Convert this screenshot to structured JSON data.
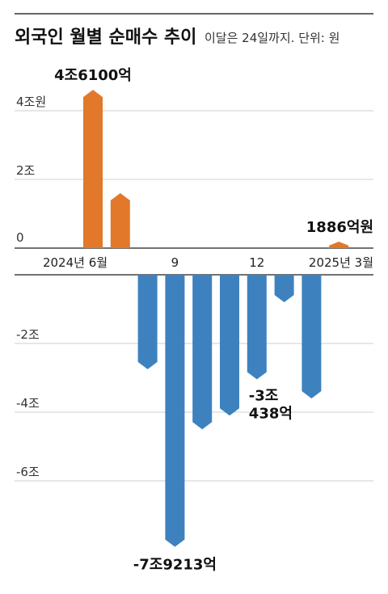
{
  "chart_data": {
    "type": "bar",
    "title": "외국인 월별 순매수 추이",
    "subtitle": "이달은 24일까지. 단위: 원",
    "categories": [
      "2024-06",
      "2024-07",
      "2024-08",
      "2024-09",
      "2024-10",
      "2024-11",
      "2024-12",
      "2025-01",
      "2025-02",
      "2025-03"
    ],
    "values_trillion": [
      4.61,
      1.6,
      -2.75,
      -7.9213,
      -4.5,
      -4.1,
      -3.0438,
      -0.8,
      -3.6,
      0.1886
    ],
    "ylim": [
      -8.2,
      5.0
    ],
    "y_ticks": [
      {
        "value": 4,
        "label": "4조원"
      },
      {
        "value": 2,
        "label": "2조"
      },
      {
        "value": 0,
        "label": "0"
      },
      {
        "value": -2,
        "label": "-2조"
      },
      {
        "value": -4,
        "label": "-4조"
      },
      {
        "value": -6,
        "label": "-6조"
      }
    ],
    "x_tick_labels": [
      {
        "index": 0,
        "label": "2024년 6월"
      },
      {
        "index": 3,
        "label": "9"
      },
      {
        "index": 6,
        "label": "12"
      },
      {
        "index": 9,
        "label": "2025년 3월"
      }
    ],
    "data_labels": [
      {
        "index": 0,
        "lines": [
          "4조6100억"
        ]
      },
      {
        "index": 3,
        "lines": [
          "-7조9213억"
        ]
      },
      {
        "index": 6,
        "lines": [
          "-3조",
          "438억"
        ]
      },
      {
        "index": 9,
        "lines": [
          "1886억원"
        ]
      }
    ],
    "colors": {
      "positive": "#e2782a",
      "negative": "#3d82bf"
    },
    "grid": true,
    "legend": "none"
  }
}
